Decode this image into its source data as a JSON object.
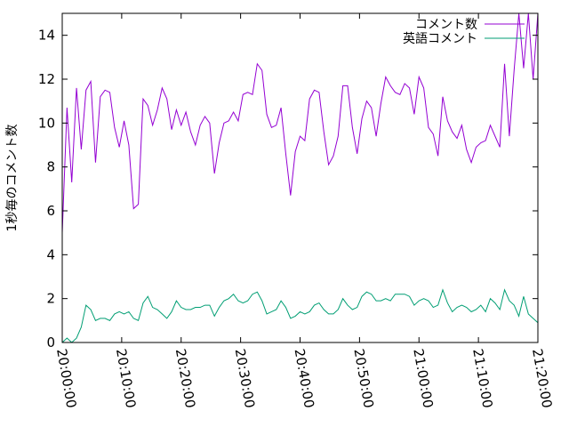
{
  "chart_data": {
    "type": "line",
    "xlabel": "",
    "ylabel": "1秒毎のコメント数",
    "ylim": [
      0,
      15
    ],
    "yticks": [
      0,
      2,
      4,
      6,
      8,
      10,
      12,
      14
    ],
    "x_range_minutes": [
      0,
      80
    ],
    "xticks": [
      "20:00:00",
      "20:10:00",
      "20:20:00",
      "20:30:00",
      "20:40:00",
      "20:50:00",
      "21:00:00",
      "21:10:00",
      "21:20:00"
    ],
    "grid": false,
    "legend_position": "top-right",
    "x_minutes": [
      0,
      0.8,
      1.6,
      2.4,
      3.2,
      4.0,
      4.8,
      5.6,
      6.4,
      7.2,
      8.0,
      8.8,
      9.6,
      10.4,
      11.2,
      12.0,
      12.8,
      13.6,
      14.4,
      15.2,
      16.0,
      16.8,
      17.6,
      18.4,
      19.2,
      20.0,
      20.8,
      21.6,
      22.4,
      23.2,
      24.0,
      24.8,
      25.6,
      26.4,
      27.2,
      28.0,
      28.8,
      29.6,
      30.4,
      31.2,
      32.0,
      32.8,
      33.6,
      34.4,
      35.2,
      36.0,
      36.8,
      37.6,
      38.4,
      39.2,
      40.0,
      40.8,
      41.6,
      42.4,
      43.2,
      44.0,
      44.8,
      45.6,
      46.4,
      47.2,
      48.0,
      48.8,
      49.6,
      50.4,
      51.2,
      52.0,
      52.8,
      53.6,
      54.4,
      55.2,
      56.0,
      56.8,
      57.6,
      58.4,
      59.2,
      60.0,
      60.8,
      61.6,
      62.4,
      63.2,
      64.0,
      64.8,
      65.6,
      66.4,
      67.2,
      68.0,
      68.8,
      69.6,
      70.4,
      71.2,
      72.0,
      72.8,
      73.6,
      74.4,
      75.2,
      76.0,
      76.8,
      77.6,
      78.4,
      79.2,
      80.0
    ],
    "series": [
      {
        "name": "コメント数",
        "color": "#9400d3",
        "values": [
          5.0,
          10.7,
          7.3,
          11.6,
          8.8,
          11.5,
          11.9,
          8.2,
          11.2,
          11.5,
          11.4,
          9.8,
          8.9,
          10.1,
          9.0,
          6.1,
          6.3,
          11.1,
          10.8,
          9.9,
          10.6,
          11.6,
          11.1,
          9.7,
          10.6,
          9.9,
          10.5,
          9.6,
          9.0,
          9.9,
          10.3,
          10.0,
          7.7,
          9.1,
          10.0,
          10.1,
          10.5,
          10.1,
          11.3,
          11.4,
          11.3,
          12.7,
          12.4,
          10.4,
          9.8,
          9.9,
          10.7,
          8.6,
          6.7,
          8.7,
          9.4,
          9.2,
          11.1,
          11.5,
          11.4,
          9.6,
          8.1,
          8.5,
          9.4,
          11.7,
          11.7,
          9.8,
          8.6,
          10.2,
          11.0,
          10.7,
          9.4,
          10.9,
          12.1,
          11.7,
          11.4,
          11.3,
          11.8,
          11.6,
          10.4,
          12.1,
          11.6,
          9.8,
          9.5,
          8.5,
          11.2,
          10.1,
          9.6,
          9.3,
          9.9,
          8.8,
          8.2,
          8.9,
          9.1,
          9.2,
          9.9,
          9.4,
          8.9,
          12.7,
          9.4,
          12.4,
          15.0,
          12.5,
          15.0,
          12.0,
          15.0
        ]
      },
      {
        "name": "英語コメント",
        "color": "#009e73",
        "values": [
          0.0,
          0.2,
          0.0,
          0.2,
          0.7,
          1.7,
          1.5,
          1.0,
          1.1,
          1.1,
          1.0,
          1.3,
          1.4,
          1.3,
          1.4,
          1.1,
          1.0,
          1.8,
          2.1,
          1.6,
          1.5,
          1.3,
          1.1,
          1.4,
          1.9,
          1.6,
          1.5,
          1.5,
          1.6,
          1.6,
          1.7,
          1.7,
          1.2,
          1.6,
          1.9,
          2.0,
          2.2,
          1.9,
          1.8,
          1.9,
          2.2,
          2.3,
          1.9,
          1.3,
          1.4,
          1.5,
          1.9,
          1.6,
          1.1,
          1.2,
          1.4,
          1.3,
          1.4,
          1.7,
          1.8,
          1.5,
          1.3,
          1.3,
          1.5,
          2.0,
          1.7,
          1.5,
          1.6,
          2.1,
          2.3,
          2.2,
          1.9,
          1.9,
          2.0,
          1.9,
          2.2,
          2.2,
          2.2,
          2.1,
          1.7,
          1.9,
          2.0,
          1.9,
          1.6,
          1.7,
          2.4,
          1.8,
          1.4,
          1.6,
          1.7,
          1.6,
          1.4,
          1.5,
          1.7,
          1.4,
          2.0,
          1.8,
          1.5,
          2.4,
          1.9,
          1.7,
          1.2,
          2.1,
          1.3,
          1.1,
          0.9
        ]
      }
    ]
  }
}
